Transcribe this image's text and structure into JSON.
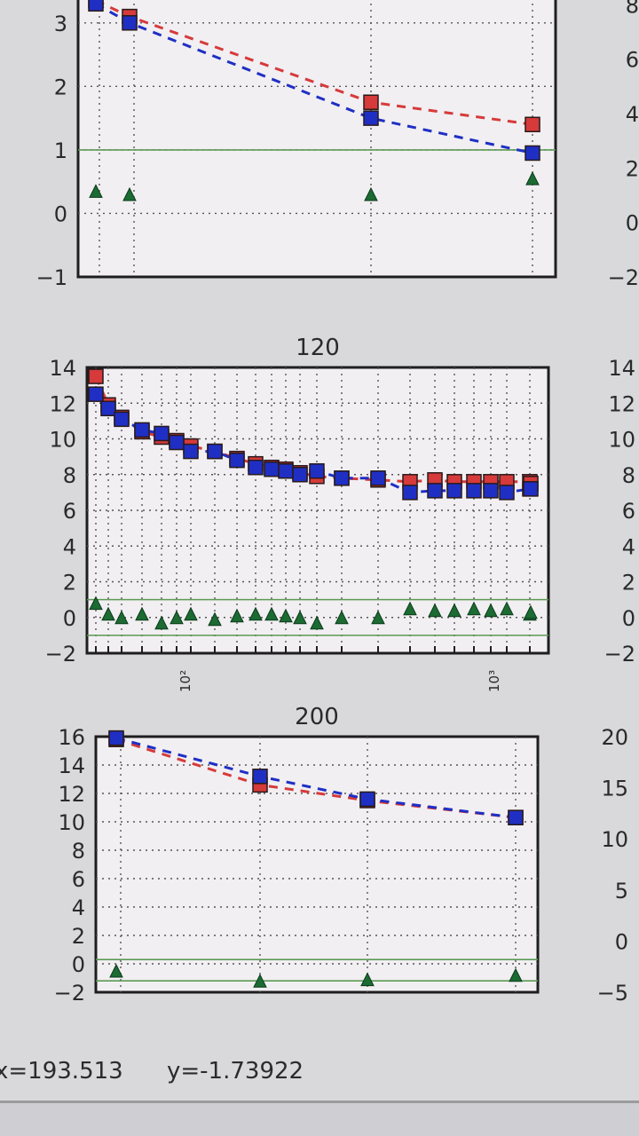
{
  "chart_data": [
    {
      "id": "top-left",
      "type": "scatter",
      "title": "",
      "ylim": [
        -1,
        3.5
      ],
      "yticks": [
        -1,
        0,
        1,
        2,
        3
      ],
      "xscale": "log",
      "grid": true,
      "hline": 1,
      "x": [
        1,
        2,
        4,
        5
      ],
      "series": [
        {
          "values": [
            3.35,
            3.1,
            1.75,
            1.4
          ],
          "marker": "square",
          "color": "#d63a3a"
        },
        {
          "values": [
            3.3,
            3.0,
            1.5,
            0.95
          ],
          "marker": "square",
          "color": "#1f2fc4"
        },
        {
          "values": [
            0.35,
            0.3,
            0.3,
            0.55
          ],
          "marker": "triangle",
          "color": "#1b6b33"
        }
      ]
    },
    {
      "id": "middle-left",
      "type": "scatter",
      "title": "120",
      "ylim": [
        -2,
        14
      ],
      "yticks": [
        -2,
        0,
        2,
        4,
        6,
        8,
        10,
        12,
        14
      ],
      "xscale": "log",
      "xtick_labels": [
        "10²",
        "10³"
      ],
      "grid": true,
      "hlines": [
        1,
        -1
      ],
      "series": [
        {
          "values": [
            13.5,
            11.9,
            11.2,
            10.4,
            10.1,
            9.9,
            9.6,
            9.3,
            8.9,
            8.6,
            8.4,
            8.3,
            8.1,
            7.9,
            7.8,
            7.7,
            7.6,
            7.7,
            7.6,
            7.6,
            7.6,
            7.6,
            7.6,
            7.5
          ],
          "marker": "square",
          "color": "#d63a3a"
        },
        {
          "values": [
            12.5,
            11.7,
            11.1,
            10.5,
            10.3,
            9.8,
            9.3,
            9.3,
            8.8,
            8.4,
            8.3,
            8.2,
            8.0,
            8.2,
            7.8,
            7.8,
            7.0,
            7.1,
            7.1,
            7.1,
            7.1,
            7.0,
            7.2,
            7.2
          ],
          "marker": "square",
          "color": "#1f2fc4"
        },
        {
          "values": [
            0.8,
            0.2,
            0.0,
            0.2,
            -0.3,
            0.0,
            0.2,
            -0.1,
            0.1,
            0.2,
            0.2,
            0.1,
            0.0,
            -0.3,
            0.0,
            0.0,
            0.5,
            0.4,
            0.4,
            0.5,
            0.4,
            0.5,
            0.2,
            0.3
          ],
          "marker": "triangle",
          "color": "#1b6b33"
        }
      ]
    },
    {
      "id": "bottom-left",
      "type": "scatter",
      "title": "200",
      "ylim": [
        -2,
        16
      ],
      "yticks": [
        -2,
        0,
        2,
        4,
        6,
        8,
        10,
        12,
        14,
        16
      ],
      "xscale": "log",
      "grid": true,
      "hlines": [
        0.3,
        -1.2
      ],
      "x": [
        1,
        3,
        4,
        5
      ],
      "series": [
        {
          "values": [
            15.8,
            12.6,
            11.5,
            10.3
          ],
          "marker": "square",
          "color": "#d63a3a"
        },
        {
          "values": [
            15.9,
            13.2,
            11.6,
            10.3
          ],
          "marker": "square",
          "color": "#1f2fc4"
        },
        {
          "values": [
            -0.5,
            -1.2,
            -1.1,
            -0.8
          ],
          "marker": "triangle",
          "color": "#1b6b33"
        }
      ]
    },
    {
      "id": "top-right-partial",
      "type": "scatter",
      "yticks": [
        -2,
        0,
        2,
        4,
        6,
        8
      ],
      "ylim": [
        -2,
        8
      ],
      "series": []
    },
    {
      "id": "middle-right-partial",
      "type": "scatter",
      "yticks": [
        -2,
        0,
        2,
        4,
        6,
        8,
        10,
        12,
        14
      ],
      "ylim": [
        -2,
        14
      ],
      "series": []
    },
    {
      "id": "bottom-right-partial",
      "type": "scatter",
      "yticks": [
        -5,
        0,
        5,
        10,
        15,
        20
      ],
      "ylim": [
        -5,
        20
      ],
      "series": []
    }
  ],
  "status": {
    "x_readout": "x=193.513",
    "y_readout": "y=-1.73922"
  }
}
